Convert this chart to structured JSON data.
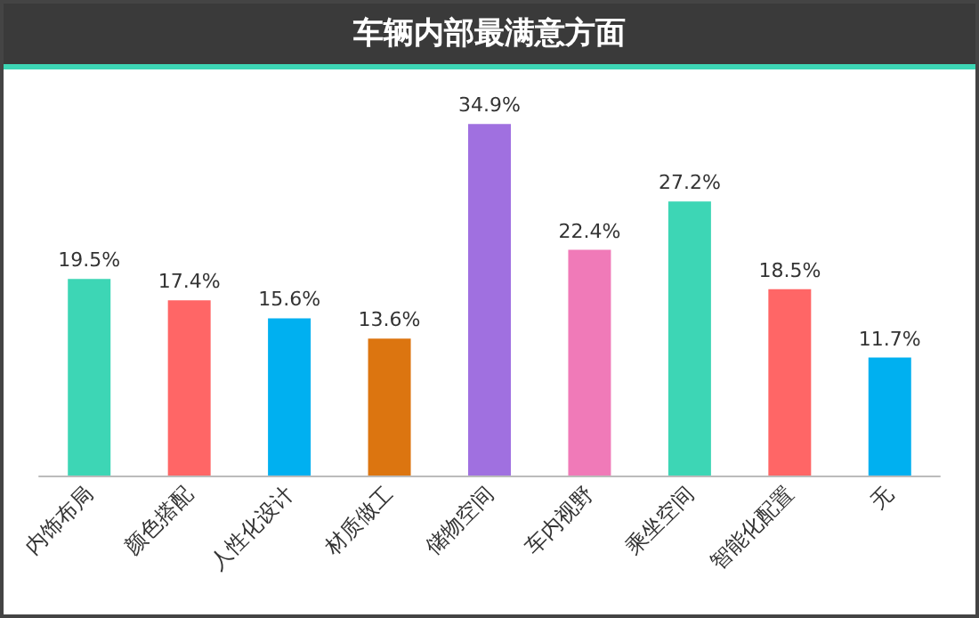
{
  "chart_data": {
    "type": "bar",
    "title": "车辆内部最满意方面",
    "categories": [
      "内饰布局",
      "颜色搭配",
      "人性化设计",
      "材质做工",
      "储物空间",
      "车内视野",
      "乘坐空间",
      "智能化配置",
      "无"
    ],
    "values": [
      19.5,
      17.4,
      15.6,
      13.6,
      34.9,
      22.4,
      27.2,
      18.5,
      11.7
    ],
    "colors": [
      "#3dd6b5",
      "#ff6666",
      "#00b0f0",
      "#dc7510",
      "#a070e0",
      "#f07ab8",
      "#3dd6b5",
      "#ff6666",
      "#00b0f0"
    ],
    "value_labels": [
      "19.5%",
      "17.4%",
      "15.6%",
      "13.6%",
      "34.9%",
      "22.4%",
      "27.2%",
      "18.5%",
      "11.7%"
    ],
    "tick_labels": "x"
  }
}
